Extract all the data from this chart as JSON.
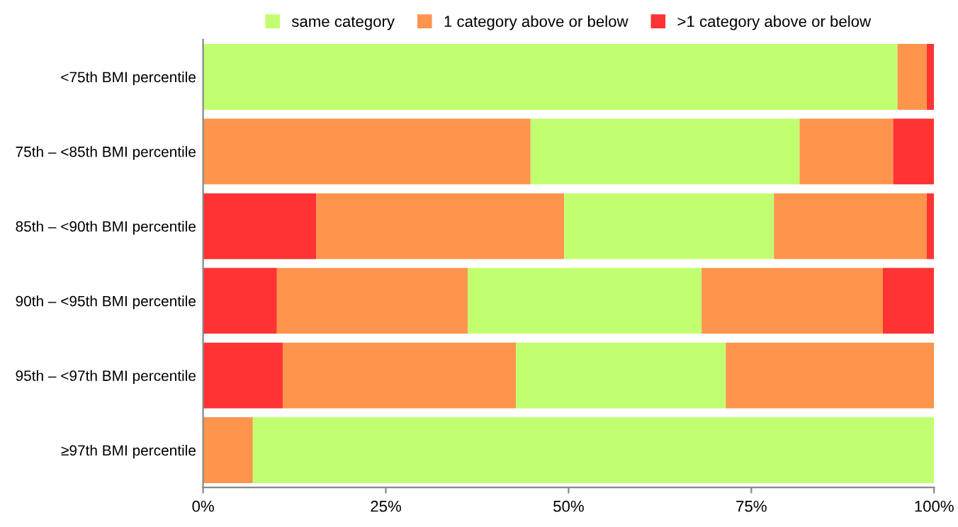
{
  "chart_data": {
    "type": "bar",
    "orientation": "horizontal",
    "stacked": true,
    "legend": "top",
    "grid": false,
    "categories": [
      "<75th BMI percentile",
      "75th – <85th BMI percentile",
      "85th – <90th BMI percentile",
      "90th – <95th BMI percentile",
      "95th – <97th BMI percentile",
      "≥97th BMI percentile"
    ],
    "xlim": [
      0,
      100
    ],
    "xticks": [
      {
        "value": 0,
        "label": "0%"
      },
      {
        "value": 25,
        "label": "25%"
      },
      {
        "value": 50,
        "label": "50%"
      },
      {
        "value": 75,
        "label": "75%"
      },
      {
        "value": 100,
        "label": "100%"
      }
    ],
    "series": [
      {
        "name": ">1 category above or below",
        "color": "#ff3333",
        "values": [
          null,
          null,
          15.5,
          10.1,
          10.9,
          null
        ]
      },
      {
        "name": "1 category above or below",
        "color": "#ff944d",
        "values": [
          null,
          44.8,
          33.9,
          26.1,
          31.9,
          6.8
        ]
      },
      {
        "name": "same category",
        "color": "#c2ff70",
        "values": [
          95.0,
          36.8,
          28.7,
          32.0,
          28.7,
          93.2
        ]
      },
      {
        "color": "#ff944d",
        "values": [
          4.0,
          12.8,
          20.9,
          24.8,
          28.5,
          null
        ]
      },
      {
        "color": "#ff3333",
        "values": [
          1.0,
          5.6,
          1.0,
          7.0,
          null,
          null
        ]
      }
    ]
  }
}
